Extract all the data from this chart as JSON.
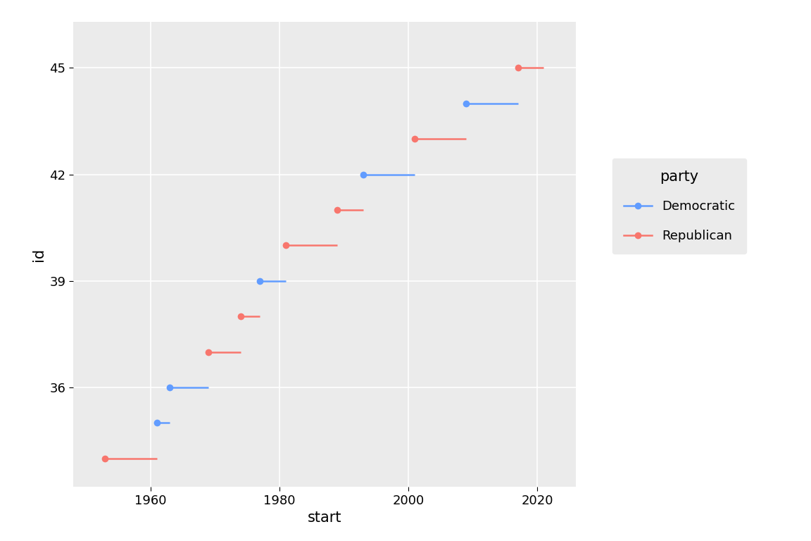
{
  "presidents": [
    {
      "id": 34,
      "start": 1953,
      "end": 1961,
      "party": "Republican"
    },
    {
      "id": 35,
      "start": 1961,
      "end": 1963,
      "party": "Democratic"
    },
    {
      "id": 36,
      "start": 1963,
      "end": 1969,
      "party": "Democratic"
    },
    {
      "id": 37,
      "start": 1969,
      "end": 1974,
      "party": "Republican"
    },
    {
      "id": 38,
      "start": 1974,
      "end": 1977,
      "party": "Republican"
    },
    {
      "id": 39,
      "start": 1977,
      "end": 1981,
      "party": "Democratic"
    },
    {
      "id": 40,
      "start": 1981,
      "end": 1989,
      "party": "Republican"
    },
    {
      "id": 41,
      "start": 1989,
      "end": 1993,
      "party": "Republican"
    },
    {
      "id": 42,
      "start": 1993,
      "end": 2001,
      "party": "Democratic"
    },
    {
      "id": 43,
      "start": 2001,
      "end": 2009,
      "party": "Republican"
    },
    {
      "id": 44,
      "start": 2009,
      "end": 2017,
      "party": "Democratic"
    },
    {
      "id": 45,
      "start": 2017,
      "end": 2021,
      "party": "Republican"
    }
  ],
  "party_colors": {
    "Democratic": "#619CFF",
    "Republican": "#F8766D"
  },
  "xlabel": "start",
  "ylabel": "id",
  "legend_title": "party",
  "panel_background": "#EBEBEB",
  "fig_background": "#FFFFFF",
  "grid_color": "#FFFFFF",
  "xlim": [
    1948,
    2026
  ],
  "ylim": [
    33.2,
    46.3
  ],
  "xticks": [
    1960,
    1980,
    2000,
    2020
  ],
  "yticks": [
    36,
    39,
    42,
    45
  ],
  "marker_size": 7,
  "line_width": 1.8,
  "axis_label_fontsize": 15,
  "tick_fontsize": 13,
  "legend_title_fontsize": 15,
  "legend_fontsize": 13
}
